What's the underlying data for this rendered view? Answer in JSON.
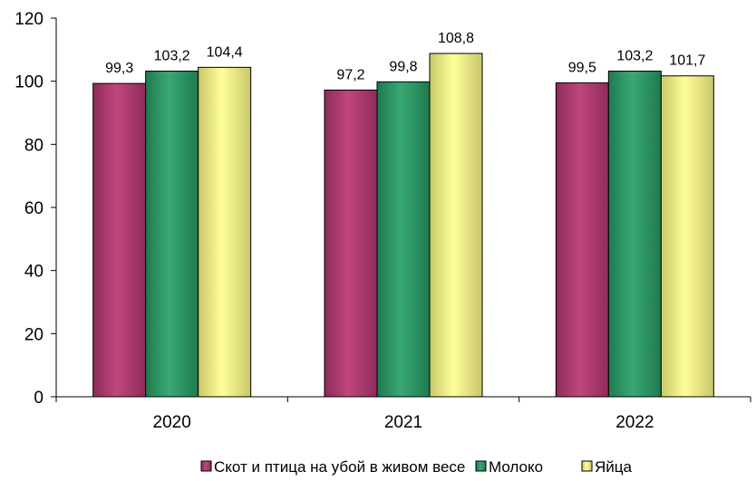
{
  "chart_data": {
    "type": "bar",
    "title": "",
    "xlabel": "",
    "ylabel": "",
    "categories": [
      "2020",
      "2021",
      "2022"
    ],
    "series": [
      {
        "name": "Скот и птица на убой в живом весе",
        "values": [
          99.3,
          97.2,
          99.5
        ],
        "labels": [
          "99,3",
          "97,2",
          "99,5"
        ],
        "color": "#8e2b5a",
        "color_light": "#c0477e"
      },
      {
        "name": "Молоко",
        "values": [
          103.2,
          99.8,
          103.2
        ],
        "labels": [
          "103,2",
          "99,8",
          "103,2"
        ],
        "color": "#1f7a4f",
        "color_light": "#3aa874"
      },
      {
        "name": "Яйца",
        "values": [
          104.4,
          108.8,
          101.7
        ],
        "labels": [
          "104,4",
          "108,8",
          "101,7"
        ],
        "color": "#c9c76a",
        "color_light": "#ffff99"
      }
    ],
    "ylim": [
      0,
      120
    ],
    "yticks": [
      0,
      20,
      40,
      60,
      80,
      100,
      120
    ],
    "grid": false,
    "legend_position": "bottom"
  }
}
